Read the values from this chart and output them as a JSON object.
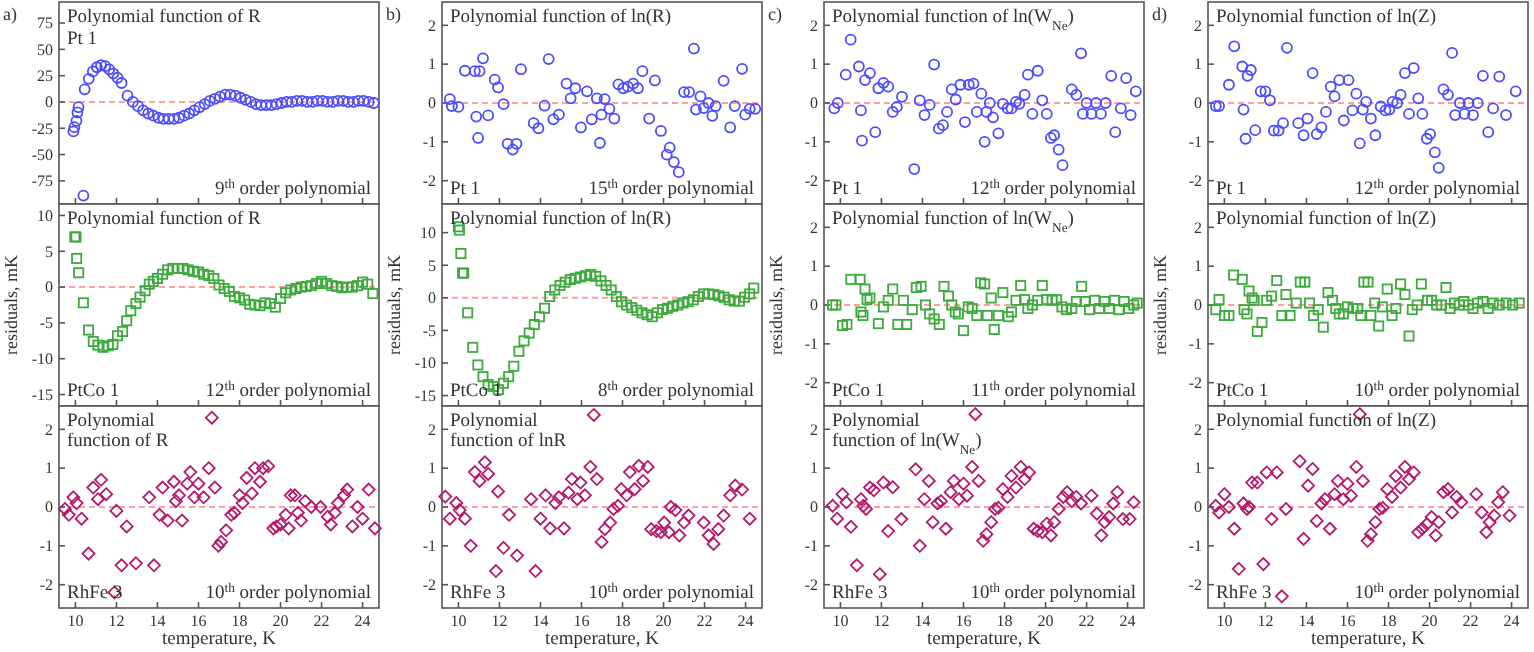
{
  "chart_data": [
    {
      "type": "scatter",
      "title": "Polynomial function of R",
      "annotations": [
        "a)",
        "Pt 1",
        "9$^{th}$ order polynomial"
      ],
      "xlim": [
        9.2,
        24.8
      ],
      "xticks": [
        10,
        12,
        14,
        16,
        18,
        20,
        22,
        24
      ],
      "ylim": [
        -97,
        95
      ],
      "yticks": [
        -75,
        -50,
        -25,
        0,
        25,
        50,
        75
      ],
      "tick_labels": "y",
      "marker": "circle",
      "ref_lines": [
        {
          "axis": "y",
          "value": 0,
          "color": "#ff9f9f",
          "line_style": "dashed"
        }
      ],
      "series": [
        {
          "color": "#4b4bff",
          "x": [
            9.9,
            9.95,
            10.05,
            10.1,
            10.15,
            10.39,
            10.45,
            10.65,
            10.85,
            11.05,
            11.25,
            11.45,
            11.65,
            11.85,
            12.05,
            12.25,
            12.54,
            12.8,
            13.05,
            13.3,
            13.55,
            13.8,
            14.05,
            14.3,
            14.55,
            14.8,
            15.05,
            15.3,
            15.55,
            15.8,
            16.05,
            16.3,
            16.55,
            16.8,
            17.05,
            17.3,
            17.55,
            17.8,
            18.05,
            18.3,
            18.55,
            18.8,
            19.05,
            19.3,
            19.55,
            19.8,
            20.05,
            20.3,
            20.55,
            20.8,
            21.05,
            21.3,
            21.55,
            21.8,
            22.05,
            22.3,
            22.55,
            22.8,
            23.05,
            23.3,
            23.55,
            23.8,
            24.05,
            24.3,
            24.55
          ],
          "values": [
            -28,
            -24,
            -18,
            -10,
            -5,
            -89,
            12,
            22,
            29,
            33,
            35,
            34,
            31,
            27,
            23,
            18,
            6,
            0,
            -4,
            -8,
            -11,
            -13,
            -15,
            -16,
            -16,
            -16,
            -15,
            -13,
            -11,
            -8,
            -5,
            -2,
            1,
            3,
            5,
            7,
            7,
            6,
            4,
            2,
            0,
            -2,
            -3,
            -3,
            -3,
            -2,
            -1,
            0,
            0,
            1,
            1,
            0,
            0,
            1,
            1,
            0,
            0,
            1,
            1,
            0,
            0,
            1,
            1,
            0,
            -1
          ]
        }
      ]
    },
    {
      "type": "scatter",
      "title": "Polynomial function of R",
      "annotations": [
        "PtCo 1",
        "12$^{th}$ order polynomial"
      ],
      "ylabel": "residuals, mK",
      "xlim": [
        9.2,
        24.8
      ],
      "xticks": [
        10,
        12,
        14,
        16,
        18,
        20,
        22,
        24
      ],
      "ylim": [
        -16.6,
        11.6
      ],
      "yticks": [
        -15,
        -10,
        -5,
        0,
        5,
        10
      ],
      "tick_labels": "y",
      "marker": "square",
      "ref_lines": [
        {
          "axis": "y",
          "value": 0,
          "color": "#ff9f9f",
          "line_style": "dashed"
        }
      ],
      "series": [
        {
          "color": "#3caa3c",
          "x": [
            9.97,
            10.03,
            10.06,
            10.16,
            10.39,
            10.64,
            10.87,
            11.1,
            11.35,
            11.6,
            11.83,
            12.05,
            12.3,
            12.5,
            12.7,
            12.95,
            13.15,
            13.4,
            13.6,
            13.8,
            14.0,
            14.25,
            14.5,
            14.75,
            15.0,
            15.25,
            15.5,
            15.75,
            16.0,
            16.25,
            16.5,
            16.75,
            17.0,
            17.25,
            17.5,
            17.75,
            18.0,
            18.25,
            18.5,
            18.75,
            19.0,
            19.25,
            19.5,
            19.75,
            20.0,
            20.25,
            20.5,
            20.75,
            21.0,
            21.25,
            21.5,
            21.75,
            22.0,
            22.25,
            22.5,
            22.75,
            23.0,
            23.25,
            23.5,
            23.75,
            24.0,
            24.25,
            24.5
          ],
          "values": [
            7,
            7,
            4,
            2,
            -2.2,
            -6,
            -7.6,
            -8.1,
            -8.4,
            -8.2,
            -8,
            -6.8,
            -6.2,
            -4.7,
            -3.3,
            -2.3,
            -1.4,
            -0.5,
            0.4,
            0.8,
            1.2,
            1.8,
            2.4,
            2.6,
            2.6,
            2.6,
            2.4,
            2.2,
            2.1,
            1.8,
            1.6,
            1.2,
            0.3,
            -0.2,
            -0.6,
            -1.3,
            -1.5,
            -1.8,
            -2.4,
            -2.5,
            -2.6,
            -2.2,
            -2.3,
            -2.8,
            -1.6,
            -0.8,
            -0.4,
            -0.2,
            0,
            0.1,
            0.2,
            0.5,
            0.8,
            0.5,
            0.2,
            0.1,
            -0.1,
            0,
            0,
            0.2,
            0.7,
            0.4,
            -0.9
          ]
        }
      ]
    },
    {
      "type": "scatter",
      "title": "Polynomial function of R",
      "annotations": [
        "RhFe 3",
        "10$^{th}$ order polynomial"
      ],
      "xlabel": "temperature, K",
      "xlim": [
        9.2,
        24.8
      ],
      "xticks": [
        10,
        12,
        14,
        16,
        18,
        20,
        22,
        24
      ],
      "ylim": [
        -2.6,
        2.6
      ],
      "yticks": [
        -2,
        -1,
        0,
        1,
        2
      ],
      "marker": "diamond",
      "ref_lines": [
        {
          "axis": "y",
          "value": 0,
          "color": "#ff9f9f",
          "line_style": "dashed"
        }
      ],
      "series": [
        {
          "color": "#b4196e",
          "x": [
            9.49,
            9.68,
            9.9,
            10.06,
            10.3,
            10.64,
            10.87,
            11.1,
            11.25,
            11.5,
            11.9,
            12.0,
            12.25,
            12.5,
            12.95,
            13.6,
            13.83,
            14.1,
            14.25,
            14.5,
            14.8,
            14.9,
            15.05,
            15.2,
            15.45,
            15.6,
            15.8,
            16.0,
            16.25,
            16.5,
            16.65,
            16.8,
            16.97,
            17.1,
            17.35,
            17.6,
            17.75,
            18.0,
            18.15,
            18.35,
            18.6,
            18.75,
            19.0,
            19.15,
            19.4,
            19.65,
            19.8,
            20.0,
            20.25,
            20.4,
            20.5,
            20.7,
            20.85,
            21.0,
            21.2,
            21.5,
            21.95,
            22.3,
            22.45,
            22.65,
            22.8,
            23.1,
            23.25,
            23.5,
            23.75,
            24.0,
            24.3,
            24.6
          ],
          "values": [
            -0.05,
            -0.2,
            0.25,
            0.1,
            -0.3,
            -1.2,
            0.5,
            0.2,
            0.7,
            0.33,
            -2.2,
            -0.1,
            -1.5,
            -0.5,
            -1.45,
            0.25,
            -1.5,
            -0.2,
            0.5,
            -0.35,
            0.65,
            0.15,
            0.3,
            -0.35,
            0.6,
            0.9,
            0.25,
            0.6,
            0.25,
            1.0,
            2.3,
            0.5,
            -1.0,
            -0.9,
            -0.6,
            -0.2,
            -0.15,
            0.3,
            0.1,
            0.75,
            0.35,
            1.0,
            0.65,
            1.0,
            1.05,
            -0.55,
            -0.5,
            -0.45,
            -0.2,
            -0.55,
            0.3,
            0.3,
            -0.15,
            -0.35,
            0.15,
            0.0,
            0.0,
            -0.25,
            -0.45,
            -0.15,
            0.1,
            0.3,
            0.45,
            -0.5,
            0.0,
            -0.3,
            0.45,
            -0.55
          ]
        }
      ]
    },
    {
      "type": "scatter",
      "title": "Polynomial function of ln(R)",
      "annotations": [
        "b)",
        "Pt 1",
        "15$^{th}$ order polynomial"
      ],
      "xlim": [
        9.2,
        24.8
      ],
      "xticks": [
        10,
        12,
        14,
        16,
        18,
        20,
        22,
        24
      ],
      "ylim": [
        -2.6,
        2.6
      ],
      "yticks": [
        -2,
        -1,
        0,
        1,
        2
      ],
      "tick_labels": "y",
      "marker": "circle",
      "ref_lines": [
        {
          "axis": "y",
          "value": 0,
          "color": "#ff9f9f",
          "line_style": "dashed"
        }
      ],
      "series": [
        {
          "color": "#4b4bff",
          "x": [
            9.58,
            9.68,
            10.0,
            10.32,
            10.8,
            10.87,
            10.96,
            11.03,
            11.2,
            11.45,
            11.77,
            11.93,
            12.2,
            12.4,
            12.65,
            12.83,
            13.05,
            13.67,
            13.9,
            14.2,
            14.4,
            14.63,
            14.9,
            15.27,
            15.47,
            15.7,
            15.97,
            16.27,
            16.5,
            16.75,
            16.9,
            16.97,
            17.13,
            17.36,
            17.6,
            17.8,
            18.04,
            18.26,
            18.52,
            18.75,
            18.97,
            19.3,
            19.58,
            19.87,
            20.16,
            20.3,
            20.5,
            20.74,
            21.0,
            21.25,
            21.48,
            21.58,
            21.8,
            21.96,
            22.19,
            22.38,
            22.54,
            22.93,
            23.25,
            23.47,
            23.83,
            23.98,
            24.2,
            24.47
          ],
          "values": [
            0.1,
            -0.08,
            -0.1,
            0.83,
            0.82,
            -0.35,
            -0.9,
            0.82,
            1.15,
            -0.32,
            0.6,
            0.4,
            -0.03,
            -1.05,
            -1.2,
            -1.05,
            0.87,
            -0.52,
            -0.65,
            -0.07,
            1.13,
            -0.42,
            -0.3,
            0.5,
            0.12,
            0.38,
            -0.63,
            0.3,
            -0.42,
            0.12,
            -1.03,
            -0.3,
            0.1,
            -0.15,
            -0.4,
            0.48,
            0.38,
            0.42,
            0.5,
            0.38,
            0.82,
            -0.4,
            0.58,
            -0.72,
            -1.33,
            -1.15,
            -1.52,
            -1.78,
            0.28,
            0.28,
            1.4,
            -0.17,
            0.17,
            -0.13,
            0.0,
            -0.33,
            -0.08,
            0.57,
            -0.63,
            -0.08,
            0.88,
            -0.3,
            -0.15,
            -0.15
          ]
        }
      ]
    },
    {
      "type": "scatter",
      "title": "Polynomial function of ln(R)",
      "annotations": [
        "PtCo 1",
        "8$^{th}$ order polynomial"
      ],
      "ylabel": "residuals, mK",
      "xlim": [
        9.2,
        24.8
      ],
      "xticks": [
        10,
        12,
        14,
        16,
        18,
        20,
        22,
        24
      ],
      "ylim": [
        -16.6,
        14.4
      ],
      "yticks": [
        -15,
        -10,
        -5,
        0,
        5,
        10
      ],
      "tick_labels": "y",
      "marker": "square",
      "ref_lines": [
        {
          "axis": "y",
          "value": 0,
          "color": "#ff9f9f",
          "line_style": "dashed"
        }
      ],
      "series": [
        {
          "color": "#3caa3c",
          "x": [
            10.0,
            10.05,
            10.12,
            10.2,
            10.26,
            10.45,
            10.7,
            10.95,
            11.2,
            11.45,
            11.7,
            11.95,
            12.2,
            12.45,
            12.7,
            12.95,
            13.2,
            13.45,
            13.7,
            13.95,
            14.2,
            14.45,
            14.7,
            14.95,
            15.2,
            15.45,
            15.7,
            15.95,
            16.2,
            16.45,
            16.7,
            16.95,
            17.2,
            17.45,
            17.7,
            17.95,
            18.2,
            18.45,
            18.7,
            18.95,
            19.2,
            19.45,
            19.7,
            19.95,
            20.2,
            20.45,
            20.7,
            20.95,
            21.2,
            21.45,
            21.7,
            21.95,
            22.2,
            22.45,
            22.7,
            22.95,
            23.2,
            23.45,
            23.7,
            23.95,
            24.2,
            24.4
          ],
          "values": [
            10.9,
            10.4,
            6.8,
            3.8,
            3.8,
            -2.3,
            -7.6,
            -10.3,
            -12.1,
            -13.3,
            -13.6,
            -14.1,
            -13.1,
            -12.1,
            -10.5,
            -8.2,
            -6.6,
            -5.4,
            -4.1,
            -2.9,
            -1.6,
            0.2,
            1.2,
            1.9,
            2.4,
            2.8,
            3.0,
            3.2,
            3.4,
            3.6,
            3.3,
            2.6,
            1.9,
            1.2,
            0.2,
            -0.6,
            -1.1,
            -1.5,
            -1.9,
            -2.3,
            -2.6,
            -2.9,
            -2.3,
            -1.8,
            -1.6,
            -1.3,
            -1.1,
            -0.8,
            -0.6,
            -0.3,
            0.2,
            0.6,
            0.6,
            0.5,
            0.3,
            0.1,
            -0.3,
            -0.5,
            -0.5,
            0.1,
            0.6,
            1.5
          ]
        }
      ]
    },
    {
      "type": "scatter",
      "title": "Polynomial function of lnR",
      "annotations": [
        "RhFe 3",
        "10$^{th}$ order polynomial"
      ],
      "xlabel": "temperature, K",
      "xlim": [
        9.2,
        24.8
      ],
      "xticks": [
        10,
        12,
        14,
        16,
        18,
        20,
        22,
        24
      ],
      "ylim": [
        -2.6,
        2.6
      ],
      "yticks": [
        -2,
        -1,
        0,
        1,
        2
      ],
      "marker": "diamond",
      "ref_lines": [
        {
          "axis": "y",
          "value": 0,
          "color": "#ff9f9f",
          "line_style": "dashed"
        }
      ],
      "series": [
        {
          "color": "#b4196e",
          "x": [
            9.36,
            9.58,
            9.9,
            10.06,
            10.32,
            10.6,
            10.8,
            11.03,
            11.29,
            11.45,
            11.83,
            11.93,
            12.2,
            12.47,
            12.86,
            13.54,
            13.76,
            14.0,
            14.25,
            14.47,
            14.73,
            14.9,
            15.15,
            15.37,
            15.53,
            15.8,
            15.95,
            16.17,
            16.43,
            16.6,
            16.75,
            16.98,
            17.14,
            17.4,
            17.56,
            17.78,
            17.94,
            18.2,
            18.36,
            18.59,
            18.8,
            19.0,
            19.23,
            19.4,
            19.65,
            19.87,
            20.03,
            20.26,
            20.35,
            20.58,
            20.77,
            21.0,
            21.22,
            21.96,
            22.2,
            22.44,
            22.67,
            22.93,
            23.25,
            23.5,
            23.83,
            24.2
          ],
          "values": [
            0.27,
            -0.3,
            0.1,
            -0.08,
            -0.3,
            -1.0,
            0.9,
            0.67,
            1.15,
            0.85,
            -1.65,
            0.4,
            -1.05,
            -0.2,
            -1.25,
            0.2,
            -1.65,
            -0.3,
            0.3,
            -0.55,
            0.1,
            0.25,
            -0.55,
            0.37,
            0.72,
            0.2,
            0.63,
            0.3,
            1.03,
            2.37,
            0.72,
            -0.9,
            -0.57,
            -0.4,
            -0.05,
            0.03,
            0.46,
            0.3,
            0.9,
            0.46,
            1.06,
            0.67,
            1.03,
            -0.57,
            -0.62,
            -0.65,
            -0.4,
            -0.65,
            0.0,
            -0.08,
            -0.73,
            -0.4,
            -0.22,
            -0.4,
            -0.73,
            -0.95,
            -0.57,
            -0.22,
            0.3,
            0.55,
            0.45,
            -0.3
          ]
        }
      ]
    },
    {
      "type": "scatter",
      "title": "Polynomial function of ln(W$_{Ne}$)",
      "annotations": [
        "c)",
        "Pt 1",
        "12$^{th}$ order polynomial"
      ],
      "xlim": [
        9.2,
        24.8
      ],
      "xticks": [
        10,
        12,
        14,
        16,
        18,
        20,
        22,
        24
      ],
      "ylim": [
        -2.6,
        2.6
      ],
      "yticks": [
        -2,
        -1,
        0,
        1,
        2
      ],
      "tick_labels": "y",
      "marker": "circle",
      "ref_lines": [
        {
          "axis": "y",
          "value": 0,
          "color": "#ff9f9f",
          "line_style": "dashed"
        }
      ],
      "series": [
        {
          "color": "#4b4bff",
          "x": [
            9.7,
            9.87,
            10.26,
            10.5,
            10.9,
            11.0,
            11.05,
            11.2,
            11.44,
            11.7,
            11.85,
            12.1,
            12.33,
            12.55,
            12.75,
            13.0,
            13.6,
            13.87,
            14.1,
            14.35,
            14.57,
            14.8,
            15.0,
            15.2,
            15.43,
            15.62,
            15.85,
            16.07,
            16.26,
            16.49,
            16.65,
            16.87,
            17.03,
            17.12,
            17.28,
            17.44,
            17.7,
            17.92,
            18.15,
            18.34,
            18.56,
            18.72,
            18.98,
            19.14,
            19.36,
            19.62,
            19.84,
            20.06,
            20.26,
            20.42,
            20.64,
            20.83,
            21.28,
            21.5,
            21.73,
            21.82,
            22.0,
            22.24,
            22.46,
            22.7,
            22.93,
            23.2,
            23.4,
            23.67,
            23.93,
            24.15,
            24.4
          ],
          "values": [
            -0.14,
            0.0,
            0.73,
            1.63,
            0.94,
            -0.19,
            -0.97,
            0.59,
            0.77,
            -0.75,
            0.38,
            0.52,
            0.42,
            -0.23,
            -0.1,
            0.16,
            -1.7,
            0.07,
            -0.31,
            -0.05,
            0.99,
            -0.66,
            -0.57,
            -0.23,
            0.35,
            0.09,
            0.47,
            -0.49,
            0.47,
            0.5,
            -0.23,
            0.24,
            -1.0,
            -0.23,
            0.0,
            -0.37,
            -0.78,
            -0.02,
            -0.14,
            -0.14,
            0.03,
            -0.02,
            0.21,
            0.73,
            -0.28,
            0.83,
            0.07,
            -0.28,
            -0.9,
            -0.83,
            -1.2,
            -1.6,
            0.35,
            0.21,
            1.28,
            -0.28,
            0.0,
            -0.28,
            0.0,
            -0.28,
            0.0,
            0.7,
            -0.75,
            -0.14,
            0.64,
            -0.31,
            0.3
          ]
        }
      ]
    },
    {
      "type": "scatter",
      "title": "Polynomial function of ln(W$_{Ne}$)",
      "annotations": [
        "PtCo 1",
        "11$^{th}$ order polynomial"
      ],
      "ylabel": "residuals, mK",
      "xlim": [
        9.2,
        24.8
      ],
      "xticks": [
        10,
        12,
        14,
        16,
        18,
        20,
        22,
        24
      ],
      "ylim": [
        -2.6,
        2.6
      ],
      "yticks": [
        -2,
        -1,
        0,
        1,
        2
      ],
      "tick_labels": "y",
      "marker": "square",
      "ref_lines": [
        {
          "axis": "y",
          "value": 0,
          "color": "#ff9f9f",
          "line_style": "dashed"
        }
      ],
      "series": [
        {
          "color": "#3caa3c",
          "x": [
            9.62,
            9.78,
            10.1,
            10.32,
            10.51,
            10.96,
            11.0,
            11.1,
            11.2,
            11.3,
            11.44,
            11.85,
            12.1,
            12.33,
            12.55,
            12.8,
            13.07,
            13.23,
            13.5,
            13.7,
            13.93,
            14.15,
            14.35,
            14.57,
            14.82,
            15.05,
            15.27,
            15.43,
            15.6,
            15.75,
            16.0,
            16.23,
            16.42,
            16.65,
            16.84,
            17.03,
            17.16,
            17.35,
            17.5,
            17.7,
            17.92,
            18.18,
            18.34,
            18.56,
            18.79,
            18.98,
            19.14,
            19.36,
            19.62,
            19.84,
            20.06,
            20.32,
            20.54,
            20.8,
            21.02,
            21.28,
            21.5,
            21.76,
            21.92,
            22.14,
            22.4,
            22.62,
            22.88,
            23.1,
            23.36,
            23.58,
            23.83,
            24.06,
            24.3,
            24.47
          ],
          "values": [
            0,
            0,
            -0.53,
            -0.5,
            0.66,
            0.66,
            -0.18,
            -0.27,
            0.41,
            0.14,
            0.18,
            -0.48,
            -0.05,
            0.12,
            0.41,
            -0.5,
            0.12,
            -0.5,
            -0.12,
            0.45,
            0.48,
            0,
            -0.23,
            -0.36,
            -0.5,
            0.48,
            0.23,
            0,
            -0.18,
            -0.23,
            -0.66,
            -0.05,
            -0.09,
            -0.27,
            0.57,
            0.54,
            -0.27,
            0.18,
            -0.63,
            -0.27,
            0.32,
            -0.3,
            -0.18,
            0.12,
            0.5,
            0.14,
            -0.09,
            0,
            0.12,
            0.5,
            0.14,
            0.12,
            0.14,
            -0.05,
            -0.12,
            -0.09,
            0.09,
            0.48,
            0.09,
            -0.12,
            0.12,
            -0.09,
            0.09,
            -0.09,
            0.12,
            -0.12,
            0.09,
            -0.09,
            0,
            0.05
          ]
        }
      ]
    },
    {
      "type": "scatter",
      "title": "Polynomial function of ln(W$_{Ne}$)",
      "annotations": [
        "RhFe 3",
        "10$^{th}$ order polynomial"
      ],
      "xlabel": "temperature, K",
      "xlim": [
        9.2,
        24.8
      ],
      "xticks": [
        10,
        12,
        14,
        16,
        18,
        20,
        22,
        24
      ],
      "ylim": [
        -2.6,
        2.6
      ],
      "yticks": [
        -2,
        -1,
        0,
        1,
        2
      ],
      "marker": "diamond",
      "ref_lines": [
        {
          "axis": "y",
          "value": 0,
          "color": "#ff9f9f",
          "line_style": "dashed"
        }
      ],
      "series": [
        {
          "color": "#b4196e",
          "x": [
            9.62,
            9.84,
            10.1,
            10.29,
            10.51,
            10.8,
            11.0,
            11.12,
            11.25,
            11.44,
            11.63,
            11.92,
            12.1,
            12.33,
            12.55,
            12.97,
            13.67,
            13.87,
            14.09,
            14.31,
            14.5,
            14.73,
            14.9,
            15.14,
            15.37,
            15.53,
            15.78,
            16.0,
            16.17,
            16.42,
            16.58,
            16.74,
            16.96,
            17.12,
            17.35,
            17.54,
            17.7,
            17.92,
            18.15,
            18.34,
            18.56,
            18.79,
            18.98,
            19.2,
            19.42,
            19.62,
            19.84,
            20.06,
            20.26,
            20.42,
            20.64,
            20.86,
            21.05,
            21.28,
            21.5,
            21.73,
            22.24,
            22.5,
            22.72,
            22.88,
            23.1,
            23.3,
            23.5,
            23.77,
            24.1,
            24.3
          ],
          "values": [
            0.03,
            -0.3,
            0.33,
            0.12,
            -0.51,
            -1.5,
            0.2,
            0.03,
            -0.05,
            0.5,
            0.43,
            -1.73,
            0.63,
            -0.62,
            0.51,
            -0.31,
            0.97,
            -1.0,
            0.2,
            0.67,
            -0.39,
            0.09,
            0.15,
            -0.56,
            0.38,
            0.67,
            0.2,
            0.6,
            0.29,
            1.03,
            2.39,
            0.67,
            -0.87,
            -0.7,
            -0.39,
            -0.05,
            -0.02,
            0.46,
            0.26,
            0.8,
            0.5,
            1.03,
            0.72,
            0.89,
            -0.56,
            -0.62,
            -0.65,
            -0.43,
            -0.73,
            -0.39,
            -0.05,
            0.26,
            0.38,
            0.15,
            0.26,
            0.09,
            0.29,
            -0.17,
            -0.73,
            -0.39,
            -0.26,
            0.09,
            0.38,
            -0.31,
            -0.31,
            0.12
          ]
        }
      ]
    },
    {
      "type": "scatter",
      "title": "Polynomial function of ln(Z)",
      "annotations": [
        "d)",
        "Pt 1",
        "12$^{th}$ order polynomial"
      ],
      "xlim": [
        9.2,
        24.8
      ],
      "xticks": [
        10,
        12,
        14,
        16,
        18,
        20,
        22,
        24
      ],
      "ylim": [
        -2.6,
        2.6
      ],
      "yticks": [
        -2,
        -1,
        0,
        1,
        2
      ],
      "tick_labels": "y",
      "marker": "circle",
      "ref_lines": [
        {
          "axis": "y",
          "value": 0,
          "color": "#ff9f9f",
          "line_style": "dashed"
        }
      ],
      "series": [
        {
          "color": "#4b4bff",
          "x": [
            9.58,
            9.74,
            10.22,
            10.48,
            10.87,
            10.93,
            11.03,
            11.13,
            11.29,
            11.5,
            11.77,
            12.0,
            12.22,
            12.41,
            12.64,
            12.86,
            13.05,
            13.6,
            13.86,
            14.05,
            14.3,
            14.5,
            14.73,
            14.95,
            15.18,
            15.37,
            15.6,
            15.82,
            16.05,
            16.24,
            16.43,
            16.6,
            16.75,
            16.91,
            17.14,
            17.36,
            17.62,
            17.85,
            18.04,
            18.2,
            18.42,
            18.59,
            18.8,
            19.0,
            19.23,
            19.45,
            19.65,
            19.87,
            20.03,
            20.26,
            20.45,
            20.68,
            20.9,
            21.1,
            21.25,
            21.48,
            21.7,
            21.9,
            22.12,
            22.35,
            22.6,
            22.86,
            23.1,
            23.4,
            23.73,
            24.2
          ],
          "values": [
            -0.08,
            -0.08,
            0.47,
            1.46,
            0.94,
            -0.17,
            -0.92,
            0.7,
            0.85,
            -0.7,
            0.3,
            0.3,
            0.07,
            -0.71,
            -0.71,
            -0.52,
            1.42,
            -0.52,
            -0.83,
            -0.4,
            0.77,
            -0.8,
            -0.63,
            -0.23,
            0.42,
            0.17,
            0.59,
            -0.45,
            0.59,
            -0.19,
            0.24,
            -1.04,
            -0.17,
            0.03,
            -0.4,
            -0.83,
            -0.09,
            -0.19,
            -0.17,
            0.03,
            0.0,
            0.21,
            0.77,
            -0.28,
            0.9,
            0.12,
            -0.28,
            -0.92,
            -0.8,
            -1.27,
            -1.67,
            0.35,
            0.21,
            1.29,
            -0.31,
            0.0,
            -0.28,
            0.0,
            -0.31,
            0.0,
            0.7,
            -0.75,
            -0.14,
            0.68,
            -0.31,
            0.3
          ]
        }
      ]
    },
    {
      "type": "scatter",
      "title": "Polynomial function of ln(Z)",
      "annotations": [
        "PtCo 1",
        "10$^{th}$ order polynomial"
      ],
      "ylabel": "residuals, mK",
      "xlim": [
        9.2,
        24.8
      ],
      "xticks": [
        10,
        12,
        14,
        16,
        18,
        20,
        22,
        24
      ],
      "ylim": [
        -2.6,
        2.6
      ],
      "yticks": [
        -2,
        -1,
        0,
        1,
        2
      ],
      "tick_labels": "y",
      "marker": "square",
      "ref_lines": [
        {
          "axis": "y",
          "value": 0,
          "color": "#ff9f9f",
          "line_style": "dashed"
        }
      ],
      "series": [
        {
          "color": "#3caa3c",
          "x": [
            9.58,
            9.74,
            10.0,
            10.22,
            10.45,
            10.87,
            10.96,
            11.1,
            11.2,
            11.35,
            11.45,
            11.6,
            11.83,
            12.06,
            12.3,
            12.55,
            12.8,
            13.0,
            13.2,
            13.5,
            13.7,
            13.92,
            14.15,
            14.34,
            14.57,
            14.82,
            15.05,
            15.27,
            15.43,
            15.6,
            15.8,
            16.0,
            16.27,
            16.5,
            16.65,
            16.8,
            17.0,
            17.14,
            17.33,
            17.52,
            17.7,
            17.94,
            18.17,
            18.36,
            18.59,
            18.8,
            19.0,
            19.16,
            19.4,
            19.6,
            19.9,
            20.1,
            20.35,
            20.58,
            20.8,
            21.0,
            21.22,
            21.45,
            21.67,
            21.9,
            22.12,
            22.35,
            22.6,
            22.86,
            23.1,
            23.4,
            23.73,
            24.05,
            24.37
          ],
          "values": [
            -0.12,
            0.14,
            -0.27,
            -0.27,
            0.77,
            0.66,
            -0.12,
            -0.23,
            0.36,
            0.18,
            0.12,
            -0.68,
            -0.45,
            0.12,
            0.23,
            0.63,
            -0.27,
            0.27,
            -0.27,
            0.05,
            0.59,
            0.59,
            0.05,
            -0.27,
            -0.12,
            -0.57,
            0.32,
            0.12,
            -0.09,
            -0.23,
            -0.23,
            -0.05,
            -0.09,
            -0.09,
            -0.27,
            0.59,
            0.59,
            -0.27,
            0.05,
            -0.54,
            -0.05,
            0.41,
            -0.27,
            -0.09,
            0.54,
            0.27,
            -0.8,
            -0.12,
            0.0,
            0.54,
            0.12,
            0.12,
            0.0,
            0.0,
            0.45,
            -0.09,
            0.05,
            0.0,
            0.09,
            0.0,
            -0.09,
            0.05,
            0.09,
            -0.09,
            0.05,
            0.0,
            0.05,
            0.0,
            0.05
          ]
        }
      ]
    },
    {
      "type": "scatter",
      "title": "Polynomial function of ln(Z)",
      "annotations": [
        "RhFe 3",
        "10$^{th}$ order polynomial"
      ],
      "xlabel": "temperature, K",
      "xlim": [
        9.2,
        24.8
      ],
      "xticks": [
        10,
        12,
        14,
        16,
        18,
        20,
        22,
        24
      ],
      "ylim": [
        -2.6,
        2.6
      ],
      "yticks": [
        -2,
        -1,
        0,
        1,
        2
      ],
      "marker": "diamond",
      "ref_lines": [
        {
          "axis": "y",
          "value": 0,
          "color": "#ff9f9f",
          "line_style": "dashed"
        }
      ],
      "series": [
        {
          "color": "#b4196e",
          "x": [
            9.58,
            9.74,
            10.0,
            10.22,
            10.48,
            10.7,
            10.93,
            11.1,
            11.2,
            11.35,
            11.6,
            11.9,
            12.06,
            12.3,
            12.55,
            12.8,
            13.0,
            13.67,
            13.86,
            14.08,
            14.3,
            14.5,
            14.73,
            14.9,
            15.14,
            15.37,
            15.53,
            15.8,
            16.0,
            16.17,
            16.43,
            16.6,
            16.75,
            16.98,
            17.14,
            17.36,
            17.56,
            17.72,
            17.94,
            18.17,
            18.36,
            18.59,
            18.8,
            19.0,
            19.23,
            19.45,
            19.65,
            19.87,
            20.1,
            20.3,
            20.45,
            20.68,
            20.9,
            21.1,
            21.32,
            21.55,
            22.28,
            22.54,
            22.77,
            22.93,
            23.15,
            23.35,
            23.57,
            23.9
          ],
          "values": [
            0.03,
            -0.14,
            0.33,
            0.0,
            -0.56,
            -1.59,
            0.09,
            -0.05,
            0.0,
            0.63,
            0.63,
            -1.47,
            0.89,
            -0.31,
            0.89,
            -2.3,
            -0.05,
            1.18,
            -0.82,
            0.55,
            0.98,
            -0.36,
            0.09,
            0.2,
            -0.56,
            0.33,
            0.67,
            0.2,
            0.6,
            0.29,
            1.03,
            2.39,
            0.67,
            -0.87,
            -0.7,
            -0.39,
            -0.05,
            -0.02,
            0.46,
            0.26,
            0.8,
            0.5,
            1.03,
            0.72,
            0.89,
            -0.65,
            -0.56,
            -0.44,
            -0.26,
            -0.73,
            -0.39,
            0.38,
            0.46,
            -0.14,
            0.26,
            0.12,
            0.33,
            -0.14,
            -0.65,
            -0.39,
            -0.22,
            0.12,
            0.38,
            -0.22
          ]
        }
      ]
    }
  ]
}
